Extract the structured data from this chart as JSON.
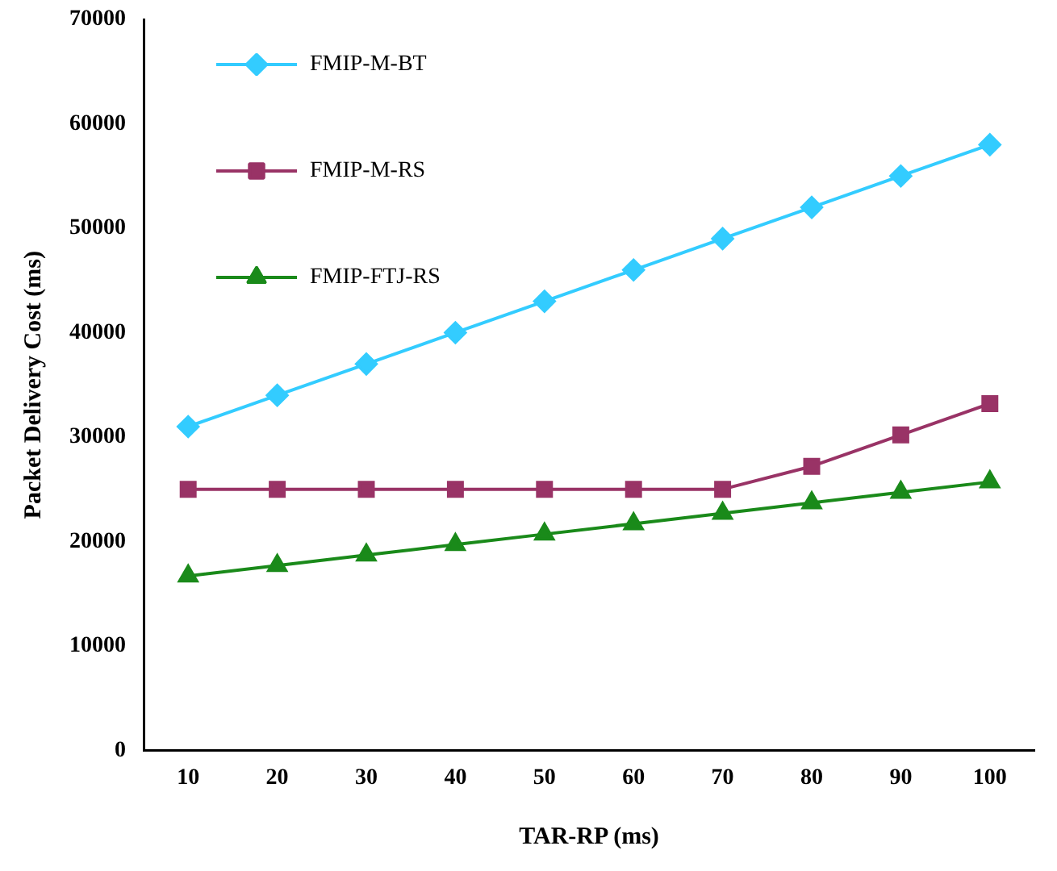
{
  "chart_data": {
    "type": "line",
    "xlabel": "TAR-RP (ms)",
    "ylabel": "Packet Delivery Cost (ms)",
    "categories": [
      "10",
      "20",
      "30",
      "40",
      "50",
      "60",
      "70",
      "80",
      "90",
      "100"
    ],
    "series": [
      {
        "name": "FMIP-M-BT",
        "color": "#33ccff",
        "marker": "diamond",
        "values": [
          31000,
          34000,
          37000,
          40000,
          43000,
          46000,
          49000,
          52000,
          55000,
          58000
        ]
      },
      {
        "name": "FMIP-M-RS",
        "color": "#993366",
        "marker": "square",
        "values": [
          25000,
          25000,
          25000,
          25000,
          25000,
          25000,
          25000,
          27200,
          30200,
          33200
        ]
      },
      {
        "name": "FMIP-FTJ-RS",
        "color": "#1a8a1a",
        "marker": "triangle",
        "values": [
          16700,
          17700,
          18700,
          19700,
          20700,
          21700,
          22700,
          23700,
          24700,
          25700
        ]
      }
    ],
    "ylim": [
      0,
      70000
    ],
    "yticks": [
      0,
      10000,
      20000,
      30000,
      40000,
      50000,
      60000,
      70000
    ],
    "grid": false,
    "legend": "top left"
  }
}
